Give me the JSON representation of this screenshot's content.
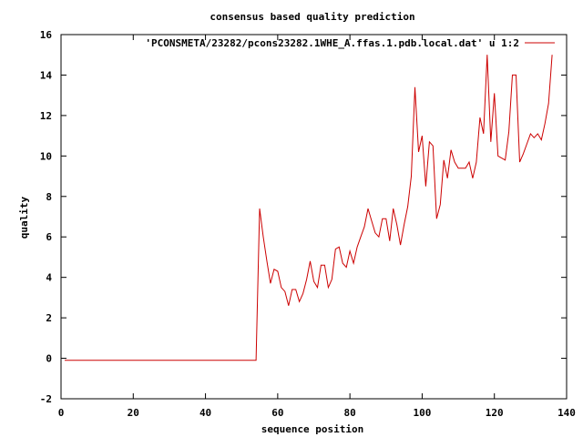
{
  "chart_data": {
    "type": "line",
    "title": "consensus based quality prediction",
    "xlabel": "sequence position",
    "ylabel": "quality",
    "xlim": [
      0,
      140
    ],
    "ylim": [
      -2,
      16
    ],
    "xticks": [
      0,
      20,
      40,
      60,
      80,
      100,
      120,
      140
    ],
    "yticks": [
      -2,
      0,
      2,
      4,
      6,
      8,
      10,
      12,
      14,
      16
    ],
    "grid": false,
    "legend_position": "top-right",
    "line_color": "#cc0000",
    "series": [
      {
        "name": "'PCONSMETA/23282/pcons23282.1WHE_A.ffas.1.pdb.local.dat' u 1:2",
        "points": [
          [
            1,
            -0.1
          ],
          [
            2,
            -0.1
          ],
          [
            3,
            -0.1
          ],
          [
            4,
            -0.1
          ],
          [
            5,
            -0.1
          ],
          [
            6,
            -0.1
          ],
          [
            7,
            -0.1
          ],
          [
            8,
            -0.1
          ],
          [
            9,
            -0.1
          ],
          [
            10,
            -0.1
          ],
          [
            11,
            -0.1
          ],
          [
            12,
            -0.1
          ],
          [
            13,
            -0.1
          ],
          [
            14,
            -0.1
          ],
          [
            15,
            -0.1
          ],
          [
            16,
            -0.1
          ],
          [
            17,
            -0.1
          ],
          [
            18,
            -0.1
          ],
          [
            19,
            -0.1
          ],
          [
            20,
            -0.1
          ],
          [
            21,
            -0.1
          ],
          [
            22,
            -0.1
          ],
          [
            23,
            -0.1
          ],
          [
            24,
            -0.1
          ],
          [
            25,
            -0.1
          ],
          [
            26,
            -0.1
          ],
          [
            27,
            -0.1
          ],
          [
            28,
            -0.1
          ],
          [
            29,
            -0.1
          ],
          [
            30,
            -0.1
          ],
          [
            31,
            -0.1
          ],
          [
            32,
            -0.1
          ],
          [
            33,
            -0.1
          ],
          [
            34,
            -0.1
          ],
          [
            35,
            -0.1
          ],
          [
            36,
            -0.1
          ],
          [
            37,
            -0.1
          ],
          [
            38,
            -0.1
          ],
          [
            39,
            -0.1
          ],
          [
            40,
            -0.1
          ],
          [
            41,
            -0.1
          ],
          [
            42,
            -0.1
          ],
          [
            43,
            -0.1
          ],
          [
            44,
            -0.1
          ],
          [
            45,
            -0.1
          ],
          [
            46,
            -0.1
          ],
          [
            47,
            -0.1
          ],
          [
            48,
            -0.1
          ],
          [
            49,
            -0.1
          ],
          [
            50,
            -0.1
          ],
          [
            51,
            -0.1
          ],
          [
            52,
            -0.1
          ],
          [
            53,
            -0.1
          ],
          [
            54,
            -0.1
          ],
          [
            55,
            7.4
          ],
          [
            56,
            6.0
          ],
          [
            57,
            4.8
          ],
          [
            58,
            3.7
          ],
          [
            59,
            4.4
          ],
          [
            60,
            4.3
          ],
          [
            61,
            3.5
          ],
          [
            62,
            3.3
          ],
          [
            63,
            2.6
          ],
          [
            64,
            3.4
          ],
          [
            65,
            3.4
          ],
          [
            66,
            2.8
          ],
          [
            67,
            3.2
          ],
          [
            68,
            3.9
          ],
          [
            69,
            4.8
          ],
          [
            70,
            3.8
          ],
          [
            71,
            3.5
          ],
          [
            72,
            4.6
          ],
          [
            73,
            4.6
          ],
          [
            74,
            3.5
          ],
          [
            75,
            3.9
          ],
          [
            76,
            5.4
          ],
          [
            77,
            5.5
          ],
          [
            78,
            4.7
          ],
          [
            79,
            4.5
          ],
          [
            80,
            5.3
          ],
          [
            81,
            4.7
          ],
          [
            82,
            5.5
          ],
          [
            83,
            6.0
          ],
          [
            84,
            6.5
          ],
          [
            85,
            7.4
          ],
          [
            86,
            6.8
          ],
          [
            87,
            6.2
          ],
          [
            88,
            6.0
          ],
          [
            89,
            6.9
          ],
          [
            90,
            6.9
          ],
          [
            91,
            5.8
          ],
          [
            92,
            7.4
          ],
          [
            93,
            6.6
          ],
          [
            94,
            5.6
          ],
          [
            95,
            6.6
          ],
          [
            96,
            7.5
          ],
          [
            97,
            9.0
          ],
          [
            98,
            13.4
          ],
          [
            99,
            10.2
          ],
          [
            100,
            11.0
          ],
          [
            101,
            8.5
          ],
          [
            102,
            10.7
          ],
          [
            103,
            10.5
          ],
          [
            104,
            6.9
          ],
          [
            105,
            7.6
          ],
          [
            106,
            9.8
          ],
          [
            107,
            8.9
          ],
          [
            108,
            10.3
          ],
          [
            109,
            9.7
          ],
          [
            110,
            9.4
          ],
          [
            111,
            9.4
          ],
          [
            112,
            9.4
          ],
          [
            113,
            9.7
          ],
          [
            114,
            8.9
          ],
          [
            115,
            9.7
          ],
          [
            116,
            11.9
          ],
          [
            117,
            11.1
          ],
          [
            118,
            15.0
          ],
          [
            119,
            10.7
          ],
          [
            120,
            13.1
          ],
          [
            121,
            10.0
          ],
          [
            122,
            9.9
          ],
          [
            123,
            9.8
          ],
          [
            124,
            11.2
          ],
          [
            125,
            14.0
          ],
          [
            126,
            14.0
          ],
          [
            127,
            9.7
          ],
          [
            128,
            10.1
          ],
          [
            129,
            10.6
          ],
          [
            130,
            11.1
          ],
          [
            131,
            10.9
          ],
          [
            132,
            11.1
          ],
          [
            133,
            10.8
          ],
          [
            134,
            11.6
          ],
          [
            135,
            12.6
          ],
          [
            136,
            15.0
          ]
        ]
      }
    ]
  }
}
